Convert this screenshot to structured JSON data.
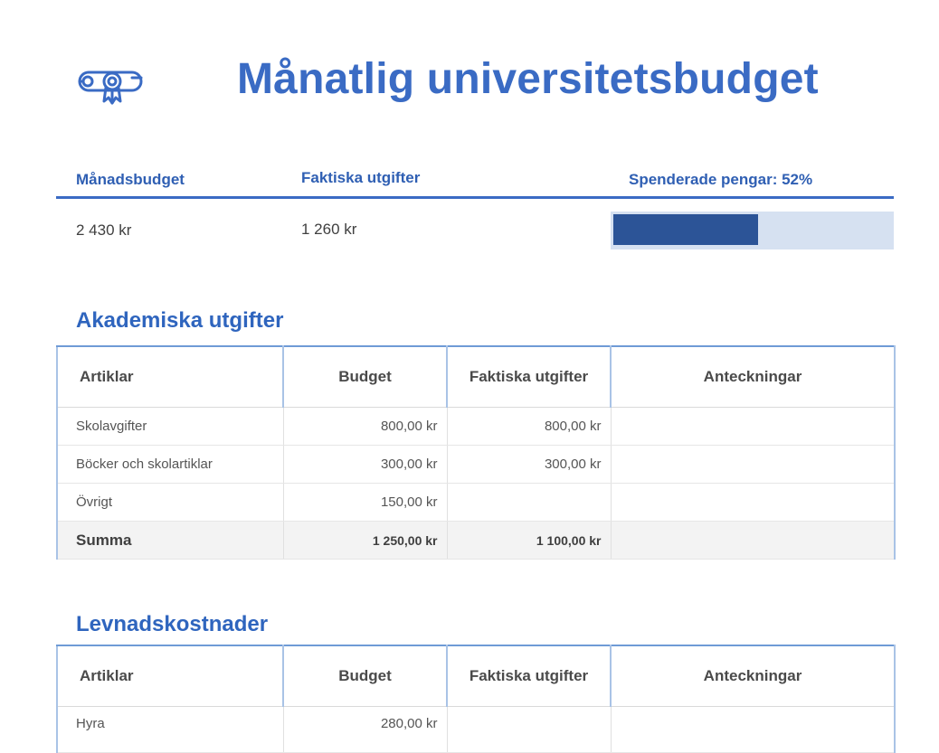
{
  "header": {
    "title": "Månatlig universitetsbudget",
    "logo_icon": "diploma-icon"
  },
  "summary": {
    "budget_label": "Månadsbudget",
    "actual_label": "Faktiska utgifter",
    "spent_label": "Spenderade pengar: 52%",
    "budget_value": "2 430 kr",
    "actual_value": "1 260 kr",
    "spent_fraction": 0.52
  },
  "academic": {
    "title": "Akademiska utgifter",
    "columns": [
      "Artiklar",
      "Budget",
      "Faktiska utgifter",
      "Anteckningar"
    ],
    "rows": [
      {
        "item": "Skolavgifter",
        "budget": "800,00 kr",
        "actual": "800,00 kr",
        "notes": ""
      },
      {
        "item": "Böcker och skolartiklar",
        "budget": "300,00 kr",
        "actual": "300,00 kr",
        "notes": ""
      },
      {
        "item": "Övrigt",
        "budget": "150,00 kr",
        "actual": "",
        "notes": ""
      }
    ],
    "total": {
      "item": "Summa",
      "budget": "1 250,00 kr",
      "actual": "1 100,00 kr",
      "notes": ""
    }
  },
  "living": {
    "title": "Levnadskostnader",
    "columns": [
      "Artiklar",
      "Budget",
      "Faktiska utgifter",
      "Anteckningar"
    ],
    "rows": [
      {
        "item": "Hyra",
        "budget": "280,00 kr",
        "actual": "",
        "notes": ""
      }
    ]
  },
  "colors": {
    "accent": "#3a6bc4",
    "progress_fill": "#2c5497",
    "progress_track": "#d6e1f1"
  }
}
